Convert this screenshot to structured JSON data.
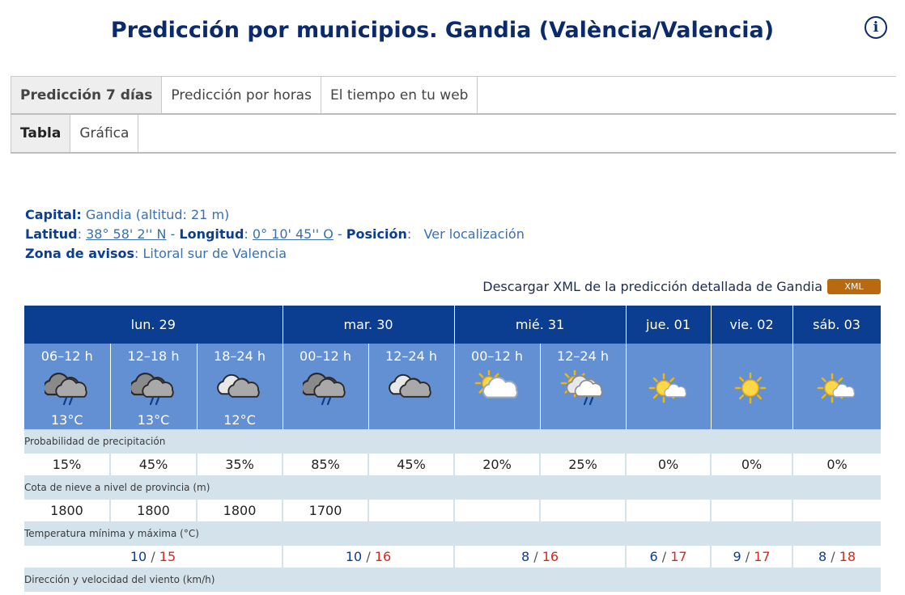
{
  "title": "Predicción por municipios. Gandia (València/Valencia)",
  "tabs": [
    "Predicción 7 días",
    "Predicción por horas",
    "El tiempo en tu web"
  ],
  "subtabs": [
    "Tabla",
    "Gráfica"
  ],
  "location": {
    "capital_label": "Capital:",
    "capital_value": "Gandia (altitud: 21 m)",
    "latitud_label": "Latitud",
    "latitud_value": "38° 58' 2'' N",
    "longitud_label": "Longitud",
    "longitud_value": "0° 10' 45'' O",
    "posicion_label": "Posición",
    "posicion_link": "Ver localización",
    "zona_label": "Zona de avisos",
    "zona_value": "Litoral sur de Valencia"
  },
  "xml": {
    "text": "Descargar XML de la predicción detallada de Gandia",
    "button": "XML"
  },
  "days": [
    {
      "label": "lun. 29",
      "span": 3
    },
    {
      "label": "mar. 30",
      "span": 2
    },
    {
      "label": "mié. 31",
      "span": 2
    },
    {
      "label": "jue. 01",
      "span": 1
    },
    {
      "label": "vie. 02",
      "span": 1
    },
    {
      "label": "sáb. 03",
      "span": 1
    }
  ],
  "periods": [
    {
      "label": "06–12 h",
      "icon": "cloud-rain-icon",
      "temp": "13°C"
    },
    {
      "label": "12–18 h",
      "icon": "cloud-rain-icon",
      "temp": "13°C"
    },
    {
      "label": "18–24 h",
      "icon": "cloudy-icon",
      "temp": "12°C"
    },
    {
      "label": "00–12 h",
      "icon": "cloud-rain-icon",
      "temp": ""
    },
    {
      "label": "12–24 h",
      "icon": "cloudy-icon",
      "temp": ""
    },
    {
      "label": "00–12 h",
      "icon": "partly-cloudy-icon",
      "temp": ""
    },
    {
      "label": "12–24 h",
      "icon": "sun-cloud-rain-icon",
      "temp": ""
    },
    {
      "label": "",
      "icon": "sun-small-cloud-icon",
      "temp": ""
    },
    {
      "label": "",
      "icon": "sun-icon",
      "temp": ""
    },
    {
      "label": "",
      "icon": "sun-small-cloud-icon",
      "temp": ""
    }
  ],
  "sections": {
    "precip": "Probabilidad de precipitación",
    "nieve": "Cota de nieve a nivel de provincia (m)",
    "temp": "Temperatura mínima y máxima (°C)",
    "viento": "Dirección y velocidad del viento (km/h)"
  },
  "precip_values": [
    "15%",
    "45%",
    "35%",
    "85%",
    "45%",
    "20%",
    "25%",
    "0%",
    "0%",
    "0%"
  ],
  "nieve_values": [
    "1800",
    "1800",
    "1800",
    "1700",
    "",
    "",
    "",
    "",
    "",
    ""
  ],
  "temps": [
    {
      "min": "10",
      "max": "15"
    },
    {
      "min": "10",
      "max": "16"
    },
    {
      "min": "8",
      "max": "16"
    },
    {
      "min": "6",
      "max": "17"
    },
    {
      "min": "9",
      "max": "17"
    },
    {
      "min": "8",
      "max": "18"
    }
  ],
  "temp_separator": "/",
  "colors": {
    "header": "#0b3d91",
    "period": "#6390d3",
    "section": "#d4e2ec",
    "max": "#d7261e"
  }
}
